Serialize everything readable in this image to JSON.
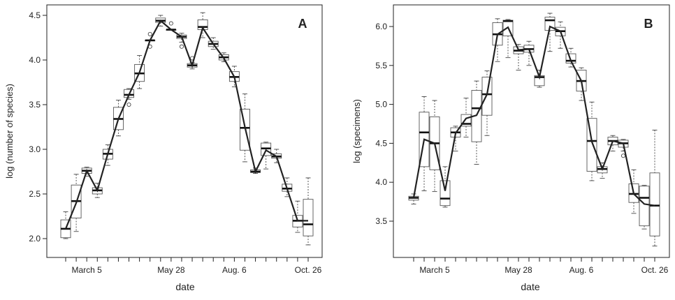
{
  "chart_data": [
    {
      "type": "box",
      "panel_label": "A",
      "xlabel": "date",
      "ylabel": "log (number of species)",
      "ylim": [
        1.93,
        4.62
      ],
      "yticks": [
        2.0,
        2.5,
        3.0,
        3.5,
        4.0,
        4.5
      ],
      "x_ticks": [
        {
          "label": "March 5",
          "index": 2
        },
        {
          "label": "May 28",
          "index": 10
        },
        {
          "label": "Aug. 6",
          "index": 16
        },
        {
          "label": "Oct. 26",
          "index": 23
        }
      ],
      "boxes": [
        {
          "median": 2.11,
          "q1": 2.01,
          "q3": 2.21,
          "lo": 2.0,
          "hi": 2.3,
          "outliers": []
        },
        {
          "median": 2.42,
          "q1": 2.23,
          "q3": 2.6,
          "lo": 2.08,
          "hi": 2.72,
          "outliers": []
        },
        {
          "median": 2.76,
          "q1": 2.73,
          "q3": 2.79,
          "lo": 2.7,
          "hi": 2.8,
          "outliers": []
        },
        {
          "median": 2.54,
          "q1": 2.5,
          "q3": 2.57,
          "lo": 2.46,
          "hi": 2.62,
          "outliers": []
        },
        {
          "median": 2.95,
          "q1": 2.89,
          "q3": 3.0,
          "lo": 2.82,
          "hi": 3.05,
          "outliers": []
        },
        {
          "median": 3.34,
          "q1": 3.22,
          "q3": 3.47,
          "lo": 3.15,
          "hi": 3.55,
          "outliers": []
        },
        {
          "median": 3.61,
          "q1": 3.58,
          "q3": 3.67,
          "lo": 3.56,
          "hi": 3.68,
          "outliers": [
            3.5
          ]
        },
        {
          "median": 3.85,
          "q1": 3.76,
          "q3": 3.95,
          "lo": 3.68,
          "hi": 4.05,
          "outliers": []
        },
        {
          "median": 4.22,
          "q1": 4.22,
          "q3": 4.22,
          "lo": 4.22,
          "hi": 4.22,
          "outliers": [
            4.15,
            4.29
          ]
        },
        {
          "median": 4.44,
          "q1": 4.42,
          "q3": 4.47,
          "lo": 4.38,
          "hi": 4.5,
          "outliers": []
        },
        {
          "median": 4.34,
          "q1": 4.34,
          "q3": 4.34,
          "lo": 4.34,
          "hi": 4.34,
          "outliers": [
            4.41
          ]
        },
        {
          "median": 4.26,
          "q1": 4.24,
          "q3": 4.28,
          "lo": 4.2,
          "hi": 4.3,
          "outliers": [
            4.15
          ]
        },
        {
          "median": 3.94,
          "q1": 3.92,
          "q3": 3.96,
          "lo": 3.9,
          "hi": 3.97,
          "outliers": [
            4.02
          ]
        },
        {
          "median": 4.37,
          "q1": 4.34,
          "q3": 4.45,
          "lo": 4.25,
          "hi": 4.53,
          "outliers": []
        },
        {
          "median": 4.18,
          "q1": 4.15,
          "q3": 4.21,
          "lo": 4.12,
          "hi": 4.25,
          "outliers": []
        },
        {
          "median": 4.03,
          "q1": 4.0,
          "q3": 4.06,
          "lo": 3.98,
          "hi": 4.08,
          "outliers": []
        },
        {
          "median": 3.81,
          "q1": 3.76,
          "q3": 3.87,
          "lo": 3.7,
          "hi": 3.93,
          "outliers": []
        },
        {
          "median": 3.24,
          "q1": 2.99,
          "q3": 3.45,
          "lo": 2.86,
          "hi": 3.62,
          "outliers": []
        },
        {
          "median": 2.75,
          "q1": 2.74,
          "q3": 2.77,
          "lo": 2.73,
          "hi": 2.79,
          "outliers": []
        },
        {
          "median": 3.01,
          "q1": 2.93,
          "q3": 3.07,
          "lo": 2.78,
          "hi": 3.08,
          "outliers": []
        },
        {
          "median": 2.92,
          "q1": 2.9,
          "q3": 2.95,
          "lo": 2.85,
          "hi": 3.0,
          "outliers": []
        },
        {
          "median": 2.56,
          "q1": 2.53,
          "q3": 2.61,
          "lo": 2.47,
          "hi": 2.68,
          "outliers": []
        },
        {
          "median": 2.2,
          "q1": 2.13,
          "q3": 2.26,
          "lo": 2.07,
          "hi": 2.42,
          "outliers": []
        },
        {
          "median": 2.16,
          "q1": 2.03,
          "q3": 2.44,
          "lo": 1.93,
          "hi": 2.68,
          "outliers": []
        }
      ],
      "trend": [
        2.11,
        2.4,
        2.76,
        2.54,
        2.95,
        3.34,
        3.61,
        3.86,
        4.22,
        4.44,
        4.34,
        4.26,
        3.94,
        4.36,
        4.18,
        4.02,
        3.81,
        3.25,
        2.75,
        2.99,
        2.92,
        2.56,
        2.2,
        2.2
      ]
    },
    {
      "type": "box",
      "panel_label": "B",
      "xlabel": "date",
      "ylabel": "log (specimens)",
      "ylim": [
        3.18,
        6.22
      ],
      "yticks": [
        3.5,
        4.0,
        4.5,
        5.0,
        5.5,
        6.0
      ],
      "x_ticks": [
        {
          "label": "March 5",
          "index": 2
        },
        {
          "label": "May 28",
          "index": 10
        },
        {
          "label": "Aug. 6",
          "index": 16
        },
        {
          "label": "Oct. 26",
          "index": 23
        }
      ],
      "boxes": [
        {
          "median": 3.8,
          "q1": 3.77,
          "q3": 3.82,
          "lo": 3.72,
          "hi": 3.85,
          "outliers": []
        },
        {
          "median": 4.64,
          "q1": 4.2,
          "q3": 4.9,
          "lo": 3.89,
          "hi": 5.1,
          "outliers": []
        },
        {
          "median": 4.5,
          "q1": 4.16,
          "q3": 4.84,
          "lo": 3.88,
          "hi": 5.05,
          "outliers": []
        },
        {
          "median": 3.79,
          "q1": 3.7,
          "q3": 4.02,
          "lo": 3.68,
          "hi": 4.2,
          "outliers": []
        },
        {
          "median": 4.64,
          "q1": 4.58,
          "q3": 4.7,
          "lo": 4.4,
          "hi": 4.72,
          "outliers": []
        },
        {
          "median": 4.75,
          "q1": 4.72,
          "q3": 4.87,
          "lo": 4.58,
          "hi": 5.08,
          "outliers": []
        },
        {
          "median": 4.95,
          "q1": 4.52,
          "q3": 5.18,
          "lo": 4.23,
          "hi": 5.3,
          "outliers": []
        },
        {
          "median": 5.13,
          "q1": 4.86,
          "q3": 5.35,
          "lo": 4.6,
          "hi": 5.43,
          "outliers": []
        },
        {
          "median": 5.9,
          "q1": 5.76,
          "q3": 6.05,
          "lo": 5.55,
          "hi": 6.1,
          "outliers": []
        },
        {
          "median": 6.07,
          "q1": 5.88,
          "q3": 6.08,
          "lo": 5.6,
          "hi": 6.09,
          "outliers": []
        },
        {
          "median": 5.69,
          "q1": 5.65,
          "q3": 5.74,
          "lo": 5.44,
          "hi": 5.77,
          "outliers": []
        },
        {
          "median": 5.71,
          "q1": 5.67,
          "q3": 5.76,
          "lo": 5.5,
          "hi": 5.81,
          "outliers": []
        },
        {
          "median": 5.35,
          "q1": 5.24,
          "q3": 5.37,
          "lo": 5.22,
          "hi": 5.44,
          "outliers": []
        },
        {
          "median": 6.08,
          "q1": 5.95,
          "q3": 6.12,
          "lo": 5.68,
          "hi": 6.17,
          "outliers": []
        },
        {
          "median": 5.94,
          "q1": 5.88,
          "q3": 5.99,
          "lo": 5.72,
          "hi": 6.06,
          "outliers": []
        },
        {
          "median": 5.56,
          "q1": 5.53,
          "q3": 5.65,
          "lo": 5.48,
          "hi": 5.72,
          "outliers": []
        },
        {
          "median": 5.3,
          "q1": 5.17,
          "q3": 5.44,
          "lo": 5.05,
          "hi": 5.47,
          "outliers": []
        },
        {
          "median": 4.53,
          "q1": 4.14,
          "q3": 4.82,
          "lo": 4.02,
          "hi": 5.03,
          "outliers": []
        },
        {
          "median": 4.17,
          "q1": 4.12,
          "q3": 4.2,
          "lo": 4.05,
          "hi": 4.25,
          "outliers": []
        },
        {
          "median": 4.53,
          "q1": 4.48,
          "q3": 4.58,
          "lo": 4.4,
          "hi": 4.6,
          "outliers": []
        },
        {
          "median": 4.5,
          "q1": 4.45,
          "q3": 4.54,
          "lo": 4.4,
          "hi": 4.55,
          "outliers": [
            4.34
          ]
        },
        {
          "median": 3.85,
          "q1": 3.74,
          "q3": 3.98,
          "lo": 3.6,
          "hi": 4.16,
          "outliers": []
        },
        {
          "median": 3.8,
          "q1": 3.44,
          "q3": 3.95,
          "lo": 3.4,
          "hi": 3.96,
          "outliers": []
        },
        {
          "median": 3.7,
          "q1": 3.31,
          "q3": 4.12,
          "lo": 3.18,
          "hi": 4.67,
          "outliers": []
        }
      ],
      "trend": [
        3.8,
        4.55,
        4.5,
        3.89,
        4.63,
        4.82,
        4.86,
        5.13,
        5.9,
        5.99,
        5.7,
        5.71,
        5.35,
        6.0,
        5.94,
        5.56,
        5.3,
        4.52,
        4.17,
        4.53,
        4.5,
        3.85,
        3.72,
        3.7
      ]
    }
  ]
}
